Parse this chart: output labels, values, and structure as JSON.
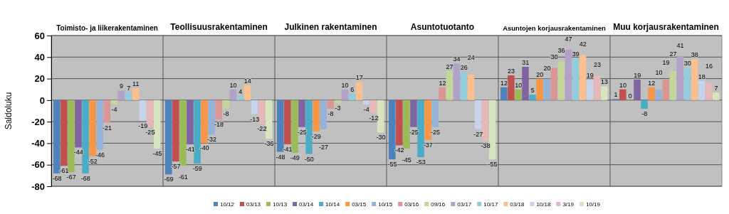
{
  "chart_data": {
    "type": "bar",
    "ylabel": "Saldoluku",
    "categories": [
      "Toimisto- ja liikerakentaminen",
      "Teollisuusrakentaminen",
      "Julkinen rakentaminen",
      "Asuntotuotanto",
      "Asuntojen korjausrakentaminen",
      "Muu korjausrakentaminen"
    ],
    "ylim": [
      -80,
      60
    ],
    "yticks": [
      -80,
      -60,
      -40,
      -20,
      0,
      20,
      40,
      60
    ],
    "grid": "y",
    "legend": "bottom",
    "data_labels": true,
    "series": [
      {
        "name": "10/12",
        "color": "#4f81bd",
        "values": [
          -68,
          -69,
          -48,
          -55,
          12,
          1
        ]
      },
      {
        "name": "03/13",
        "color": "#c0504d",
        "values": [
          -61,
          -57,
          -41,
          -42,
          23,
          10
        ]
      },
      {
        "name": "10/13",
        "color": "#9bbb59",
        "values": [
          -67,
          -61,
          -49,
          -45,
          10,
          0
        ]
      },
      {
        "name": "03/14",
        "color": "#8064a2",
        "values": [
          -44,
          -41,
          -25,
          -25,
          31,
          19
        ]
      },
      {
        "name": "10/14",
        "color": "#4bacc6",
        "values": [
          -68,
          -59,
          -50,
          -53,
          5,
          -8
        ]
      },
      {
        "name": "03/15",
        "color": "#f79646",
        "values": [
          -52,
          -40,
          -29,
          -37,
          20,
          12
        ]
      },
      {
        "name": "10/15",
        "color": "#95b3d7",
        "values": [
          -46,
          -32,
          -27,
          -25,
          20,
          10
        ]
      },
      {
        "name": "03/16",
        "color": "#d99694",
        "values": [
          -21,
          -18,
          -8,
          12,
          30,
          19
        ]
      },
      {
        "name": "09/16",
        "color": "#c3d69b",
        "values": [
          -4,
          -8,
          -3,
          27,
          36,
          27
        ]
      },
      {
        "name": "03/17",
        "color": "#b3a2c7",
        "values": [
          9,
          10,
          10,
          34,
          47,
          41
        ]
      },
      {
        "name": "10/17",
        "color": "#93cddd",
        "values": [
          7,
          4,
          6,
          26,
          39,
          30
        ]
      },
      {
        "name": "03/18",
        "color": "#fac090",
        "values": [
          11,
          14,
          17,
          24,
          42,
          38
        ]
      },
      {
        "name": "10/18",
        "color": "#c6d3ea",
        "values": [
          -19,
          -13,
          -4,
          -27,
          19,
          18
        ]
      },
      {
        "name": "3/19",
        "color": "#e6b9b8",
        "values": [
          -25,
          -22,
          -12,
          -38,
          23,
          16
        ]
      },
      {
        "name": "10/19",
        "color": "#d7e4bd",
        "values": [
          -45,
          -36,
          -30,
          -55,
          13,
          7
        ]
      }
    ]
  }
}
